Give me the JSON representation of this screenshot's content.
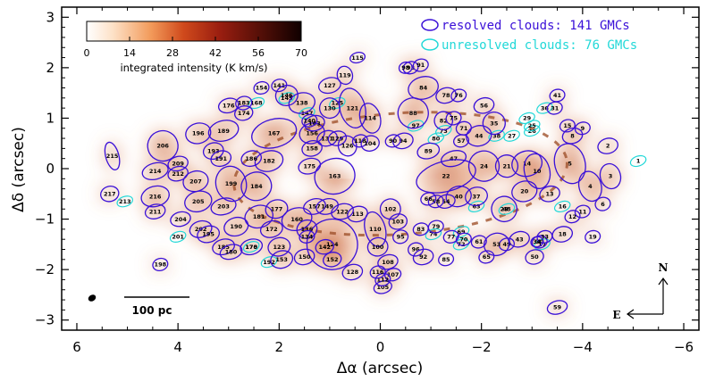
{
  "chart_data": {
    "type": "scatter",
    "title": "",
    "xlabel": "Δα (arcsec)",
    "ylabel": "Δδ (arcsec)",
    "xlim": [
      6.3,
      -6.3
    ],
    "ylim": [
      -3.2,
      3.2
    ],
    "x_ticks": [
      6,
      4,
      2,
      0,
      -2,
      -4,
      -6
    ],
    "y_ticks": [
      3,
      2,
      1,
      0,
      -1,
      -2,
      -3
    ],
    "x_tick_labels": [
      "6",
      "4",
      "2",
      "0",
      "−2",
      "−4",
      "−6"
    ],
    "y_tick_labels": [
      "3",
      "2",
      "1",
      "0",
      "−1",
      "−2",
      "−3"
    ],
    "legend": {
      "position": "top-right",
      "entries": [
        {
          "label": "resolved clouds: 141 GMCs",
          "color": "#3a10d8"
        },
        {
          "label": "unresolved clouds: 76 GMCs",
          "color": "#22d8d8"
        }
      ]
    },
    "colorbar": {
      "title": "integrated intensity (K km/s)",
      "range": [
        0,
        70
      ],
      "tick_labels": [
        "0",
        "14",
        "28",
        "42",
        "56",
        "70"
      ]
    },
    "scale_bar_label": "100 pc",
    "compass": {
      "north": "N",
      "east": "E"
    },
    "resolved_clouds": [
      {
        "id": "206",
        "x": 4.3,
        "y": 0.45,
        "a": 0.3,
        "b": 0.3
      },
      {
        "id": "214",
        "x": 4.45,
        "y": -0.05,
        "a": 0.26,
        "b": 0.16
      },
      {
        "id": "209",
        "x": 4.0,
        "y": 0.1,
        "a": 0.2,
        "b": 0.14
      },
      {
        "id": "212",
        "x": 4.0,
        "y": -0.1,
        "a": 0.2,
        "b": 0.14
      },
      {
        "id": "216",
        "x": 4.45,
        "y": -0.55,
        "a": 0.28,
        "b": 0.2
      },
      {
        "id": "211",
        "x": 4.45,
        "y": -0.85,
        "a": 0.2,
        "b": 0.14
      },
      {
        "id": "207",
        "x": 3.65,
        "y": -0.25,
        "a": 0.25,
        "b": 0.2
      },
      {
        "id": "205",
        "x": 3.6,
        "y": -0.65,
        "a": 0.27,
        "b": 0.2
      },
      {
        "id": "204",
        "x": 3.95,
        "y": -1.0,
        "a": 0.2,
        "b": 0.14
      },
      {
        "id": "202",
        "x": 3.55,
        "y": -1.2,
        "a": 0.22,
        "b": 0.16
      },
      {
        "id": "196",
        "x": 3.6,
        "y": 0.7,
        "a": 0.25,
        "b": 0.2
      },
      {
        "id": "189",
        "x": 3.1,
        "y": 0.75,
        "a": 0.3,
        "b": 0.2
      },
      {
        "id": "193",
        "x": 3.3,
        "y": 0.35,
        "a": 0.2,
        "b": 0.16
      },
      {
        "id": "191",
        "x": 3.15,
        "y": 0.2,
        "a": 0.2,
        "b": 0.15
      },
      {
        "id": "199",
        "x": 2.95,
        "y": -0.3,
        "a": 0.3,
        "b": 0.35
      },
      {
        "id": "203",
        "x": 3.1,
        "y": -0.75,
        "a": 0.25,
        "b": 0.16
      },
      {
        "id": "195",
        "x": 3.4,
        "y": -1.3,
        "a": 0.22,
        "b": 0.16
      },
      {
        "id": "190",
        "x": 2.85,
        "y": -1.15,
        "a": 0.24,
        "b": 0.18
      },
      {
        "id": "185",
        "x": 3.1,
        "y": -1.55,
        "a": 0.22,
        "b": 0.15
      },
      {
        "id": "180",
        "x": 2.95,
        "y": -1.65,
        "a": 0.22,
        "b": 0.14
      },
      {
        "id": "181",
        "x": 2.4,
        "y": -0.95,
        "a": 0.28,
        "b": 0.22
      },
      {
        "id": "184",
        "x": 2.45,
        "y": -0.35,
        "a": 0.3,
        "b": 0.28
      },
      {
        "id": "182",
        "x": 2.2,
        "y": 0.15,
        "a": 0.28,
        "b": 0.2
      },
      {
        "id": "186",
        "x": 2.55,
        "y": 0.2,
        "a": 0.2,
        "b": 0.15
      },
      {
        "id": "177",
        "x": 2.05,
        "y": -0.8,
        "a": 0.22,
        "b": 0.18
      },
      {
        "id": "172",
        "x": 2.15,
        "y": -1.2,
        "a": 0.22,
        "b": 0.16
      },
      {
        "id": "170",
        "x": 2.55,
        "y": -1.55,
        "a": 0.22,
        "b": 0.15
      },
      {
        "id": "160",
        "x": 1.65,
        "y": -1.0,
        "a": 0.3,
        "b": 0.22
      },
      {
        "id": "153",
        "x": 1.95,
        "y": -1.8,
        "a": 0.22,
        "b": 0.17
      },
      {
        "id": "174",
        "x": 2.7,
        "y": 1.1,
        "a": 0.18,
        "b": 0.14
      },
      {
        "id": "176",
        "x": 3.0,
        "y": 1.25,
        "a": 0.2,
        "b": 0.14
      },
      {
        "id": "183",
        "x": 2.7,
        "y": 1.3,
        "a": 0.16,
        "b": 0.13
      },
      {
        "id": "167",
        "x": 2.1,
        "y": 0.7,
        "a": 0.45,
        "b": 0.28
      },
      {
        "id": "154",
        "x": 2.35,
        "y": 1.6,
        "a": 0.15,
        "b": 0.12
      },
      {
        "id": "141",
        "x": 2.0,
        "y": 1.65,
        "a": 0.15,
        "b": 0.12
      },
      {
        "id": "146",
        "x": 1.85,
        "y": 1.45,
        "a": 0.22,
        "b": 0.2
      },
      {
        "id": "156",
        "x": 1.35,
        "y": 0.7,
        "a": 0.25,
        "b": 0.2
      },
      {
        "id": "163",
        "x": 0.9,
        "y": -0.15,
        "a": 0.4,
        "b": 0.35
      },
      {
        "id": "158",
        "x": 1.35,
        "y": 0.4,
        "a": 0.2,
        "b": 0.15
      },
      {
        "id": "175",
        "x": 1.4,
        "y": 0.05,
        "a": 0.22,
        "b": 0.15
      },
      {
        "id": "157",
        "x": 1.3,
        "y": -0.75,
        "a": 0.22,
        "b": 0.15
      },
      {
        "id": "149",
        "x": 1.05,
        "y": -0.75,
        "a": 0.22,
        "b": 0.15
      },
      {
        "id": "143",
        "x": 1.3,
        "y": 0.9,
        "a": 0.2,
        "b": 0.15
      },
      {
        "id": "138",
        "x": 1.55,
        "y": 1.3,
        "a": 0.26,
        "b": 0.2
      },
      {
        "id": "140",
        "x": 1.4,
        "y": 0.95,
        "a": 0.15,
        "b": 0.12
      },
      {
        "id": "131",
        "x": 1.05,
        "y": 0.6,
        "a": 0.2,
        "b": 0.15
      },
      {
        "id": "129",
        "x": 0.85,
        "y": 0.6,
        "a": 0.18,
        "b": 0.14
      },
      {
        "id": "130",
        "x": 1.0,
        "y": 1.2,
        "a": 0.2,
        "b": 0.2
      },
      {
        "id": "127",
        "x": 1.0,
        "y": 1.65,
        "a": 0.22,
        "b": 0.15
      },
      {
        "id": "119",
        "x": 0.7,
        "y": 1.85,
        "a": 0.15,
        "b": 0.18
      },
      {
        "id": "121",
        "x": 0.55,
        "y": 1.2,
        "a": 0.25,
        "b": 0.4
      },
      {
        "id": "126",
        "x": 0.65,
        "y": 0.45,
        "a": 0.18,
        "b": 0.2
      },
      {
        "id": "115",
        "x": 0.45,
        "y": 2.2,
        "a": 0.15,
        "b": 0.1
      },
      {
        "id": "114",
        "x": 0.2,
        "y": 1.0,
        "a": 0.2,
        "b": 0.3
      },
      {
        "id": "118",
        "x": 0.4,
        "y": 0.55,
        "a": 0.15,
        "b": 0.12
      },
      {
        "id": "113",
        "x": 0.45,
        "y": -0.9,
        "a": 0.2,
        "b": 0.15
      },
      {
        "id": "122",
        "x": 0.75,
        "y": -0.85,
        "a": 0.22,
        "b": 0.15
      },
      {
        "id": "124",
        "x": 0.95,
        "y": -1.5,
        "a": 0.5,
        "b": 0.5
      },
      {
        "id": "136",
        "x": 1.45,
        "y": -1.2,
        "a": 0.2,
        "b": 0.18
      },
      {
        "id": "134",
        "x": 1.45,
        "y": -1.35,
        "a": 0.15,
        "b": 0.12
      },
      {
        "id": "142",
        "x": 1.1,
        "y": -1.55,
        "a": 0.18,
        "b": 0.14
      },
      {
        "id": "152",
        "x": 0.95,
        "y": -1.8,
        "a": 0.18,
        "b": 0.14
      },
      {
        "id": "123",
        "x": 2.0,
        "y": -1.55,
        "a": 0.22,
        "b": 0.18
      },
      {
        "id": "150",
        "x": 1.5,
        "y": -1.75,
        "a": 0.2,
        "b": 0.15
      },
      {
        "id": "110",
        "x": 0.1,
        "y": -1.2,
        "a": 0.2,
        "b": 0.35
      },
      {
        "id": "104",
        "x": 0.2,
        "y": 0.5,
        "a": 0.18,
        "b": 0.15
      },
      {
        "id": "105",
        "x": -0.05,
        "y": -2.35,
        "a": 0.18,
        "b": 0.12
      },
      {
        "id": "108",
        "x": -0.15,
        "y": -1.85,
        "a": 0.2,
        "b": 0.14
      },
      {
        "id": "107",
        "x": -0.25,
        "y": -2.1,
        "a": 0.16,
        "b": 0.12
      },
      {
        "id": "112",
        "x": -0.05,
        "y": -2.2,
        "a": 0.15,
        "b": 0.12
      },
      {
        "id": "116",
        "x": 0.05,
        "y": -2.05,
        "a": 0.15,
        "b": 0.12
      },
      {
        "id": "128",
        "x": 0.55,
        "y": -2.05,
        "a": 0.2,
        "b": 0.15
      },
      {
        "id": "102",
        "x": -0.2,
        "y": -0.8,
        "a": 0.2,
        "b": 0.2
      },
      {
        "id": "103",
        "x": -0.35,
        "y": -1.05,
        "a": 0.18,
        "b": 0.15
      },
      {
        "id": "100",
        "x": 0.05,
        "y": -1.55,
        "a": 0.2,
        "b": 0.18
      },
      {
        "id": "95",
        "x": -0.4,
        "y": -1.35,
        "a": 0.15,
        "b": 0.13
      },
      {
        "id": "96",
        "x": -0.7,
        "y": -1.6,
        "a": 0.15,
        "b": 0.13
      },
      {
        "id": "92",
        "x": -0.85,
        "y": -1.75,
        "a": 0.2,
        "b": 0.15
      },
      {
        "id": "85",
        "x": -1.3,
        "y": -1.8,
        "a": 0.15,
        "b": 0.12
      },
      {
        "id": "93",
        "x": -0.6,
        "y": 2.0,
        "a": 0.15,
        "b": 0.12
      },
      {
        "id": "91",
        "x": -0.8,
        "y": 2.05,
        "a": 0.15,
        "b": 0.12
      },
      {
        "id": "98",
        "x": -0.5,
        "y": 2.0,
        "a": 0.13,
        "b": 0.11
      },
      {
        "id": "84",
        "x": -0.85,
        "y": 1.6,
        "a": 0.3,
        "b": 0.22
      },
      {
        "id": "88",
        "x": -0.65,
        "y": 1.1,
        "a": 0.3,
        "b": 0.3
      },
      {
        "id": "94",
        "x": -0.45,
        "y": 0.55,
        "a": 0.2,
        "b": 0.15
      },
      {
        "id": "90",
        "x": -0.25,
        "y": 0.55,
        "a": 0.15,
        "b": 0.12
      },
      {
        "id": "89",
        "x": -0.95,
        "y": 0.35,
        "a": 0.22,
        "b": 0.15
      },
      {
        "id": "78",
        "x": -1.3,
        "y": 1.45,
        "a": 0.2,
        "b": 0.15
      },
      {
        "id": "76",
        "x": -1.55,
        "y": 1.45,
        "a": 0.15,
        "b": 0.12
      },
      {
        "id": "82",
        "x": -1.25,
        "y": 0.95,
        "a": 0.18,
        "b": 0.18
      },
      {
        "id": "75",
        "x": -1.45,
        "y": 1.0,
        "a": 0.15,
        "b": 0.13
      },
      {
        "id": "71",
        "x": -1.65,
        "y": 0.8,
        "a": 0.15,
        "b": 0.13
      },
      {
        "id": "57",
        "x": -1.6,
        "y": 0.55,
        "a": 0.15,
        "b": 0.12
      },
      {
        "id": "47",
        "x": -1.45,
        "y": 0.2,
        "a": 0.25,
        "b": 0.15
      },
      {
        "id": "22",
        "x": -1.3,
        "y": -0.15,
        "a": 0.6,
        "b": 0.3
      },
      {
        "id": "24",
        "x": -2.05,
        "y": 0.05,
        "a": 0.3,
        "b": 0.3
      },
      {
        "id": "21",
        "x": -2.5,
        "y": 0.05,
        "a": 0.22,
        "b": 0.22
      },
      {
        "id": "23",
        "x": -2.45,
        "y": -0.8,
        "a": 0.25,
        "b": 0.25
      },
      {
        "id": "40",
        "x": -1.55,
        "y": -0.55,
        "a": 0.25,
        "b": 0.2
      },
      {
        "id": "37",
        "x": -1.9,
        "y": -0.55,
        "a": 0.22,
        "b": 0.18
      },
      {
        "id": "54",
        "x": -1.3,
        "y": -0.65,
        "a": 0.18,
        "b": 0.13
      },
      {
        "id": "58",
        "x": -1.1,
        "y": -0.65,
        "a": 0.15,
        "b": 0.12
      },
      {
        "id": "66",
        "x": -0.95,
        "y": -0.6,
        "a": 0.15,
        "b": 0.12
      },
      {
        "id": "44",
        "x": -1.95,
        "y": 0.65,
        "a": 0.25,
        "b": 0.2
      },
      {
        "id": "35",
        "x": -2.25,
        "y": 0.9,
        "a": 0.22,
        "b": 0.22
      },
      {
        "id": "56",
        "x": -2.05,
        "y": 1.25,
        "a": 0.2,
        "b": 0.15
      },
      {
        "id": "41",
        "x": -3.5,
        "y": 1.45,
        "a": 0.15,
        "b": 0.12
      },
      {
        "id": "31",
        "x": -3.45,
        "y": 1.2,
        "a": 0.15,
        "b": 0.12
      },
      {
        "id": "14",
        "x": -2.9,
        "y": 0.1,
        "a": 0.3,
        "b": 0.25
      },
      {
        "id": "10",
        "x": -3.1,
        "y": -0.05,
        "a": 0.25,
        "b": 0.35
      },
      {
        "id": "20",
        "x": -2.85,
        "y": -0.45,
        "a": 0.25,
        "b": 0.2
      },
      {
        "id": "13",
        "x": -3.35,
        "y": -0.5,
        "a": 0.2,
        "b": 0.15
      },
      {
        "id": "5",
        "x": -3.75,
        "y": 0.1,
        "a": 0.3,
        "b": 0.4
      },
      {
        "id": "4",
        "x": -4.15,
        "y": -0.35,
        "a": 0.22,
        "b": 0.3
      },
      {
        "id": "3",
        "x": -4.55,
        "y": -0.15,
        "a": 0.2,
        "b": 0.25
      },
      {
        "id": "2",
        "x": -4.5,
        "y": 0.45,
        "a": 0.2,
        "b": 0.15
      },
      {
        "id": "8",
        "x": -3.8,
        "y": 0.65,
        "a": 0.2,
        "b": 0.15
      },
      {
        "id": "15",
        "x": -3.7,
        "y": 0.85,
        "a": 0.15,
        "b": 0.12
      },
      {
        "id": "9",
        "x": -4.0,
        "y": 0.8,
        "a": 0.15,
        "b": 0.12
      },
      {
        "id": "6",
        "x": -4.4,
        "y": -0.7,
        "a": 0.15,
        "b": 0.13
      },
      {
        "id": "11",
        "x": -4.0,
        "y": -0.85,
        "a": 0.15,
        "b": 0.12
      },
      {
        "id": "12",
        "x": -3.8,
        "y": -0.95,
        "a": 0.15,
        "b": 0.12
      },
      {
        "id": "18",
        "x": -3.6,
        "y": -1.3,
        "a": 0.2,
        "b": 0.15
      },
      {
        "id": "19",
        "x": -4.2,
        "y": -1.35,
        "a": 0.15,
        "b": 0.12
      },
      {
        "id": "30",
        "x": -3.15,
        "y": -1.45,
        "a": 0.15,
        "b": 0.12
      },
      {
        "id": "33",
        "x": -3.25,
        "y": -1.35,
        "a": 0.15,
        "b": 0.12
      },
      {
        "id": "34",
        "x": -3.1,
        "y": -1.45,
        "a": 0.12,
        "b": 0.1
      },
      {
        "id": "43",
        "x": -2.75,
        "y": -1.4,
        "a": 0.2,
        "b": 0.15
      },
      {
        "id": "49",
        "x": -2.5,
        "y": -1.5,
        "a": 0.15,
        "b": 0.12
      },
      {
        "id": "50",
        "x": -3.05,
        "y": -1.75,
        "a": 0.18,
        "b": 0.14
      },
      {
        "id": "53",
        "x": -2.3,
        "y": -1.5,
        "a": 0.25,
        "b": 0.22
      },
      {
        "id": "61",
        "x": -1.95,
        "y": -1.45,
        "a": 0.15,
        "b": 0.12
      },
      {
        "id": "65",
        "x": -2.1,
        "y": -1.75,
        "a": 0.15,
        "b": 0.12
      },
      {
        "id": "70",
        "x": -1.65,
        "y": -1.4,
        "a": 0.15,
        "b": 0.12
      },
      {
        "id": "77",
        "x": -1.4,
        "y": -1.35,
        "a": 0.15,
        "b": 0.12
      },
      {
        "id": "79",
        "x": -1.1,
        "y": -1.15,
        "a": 0.15,
        "b": 0.12
      },
      {
        "id": "83",
        "x": -0.8,
        "y": -1.2,
        "a": 0.15,
        "b": 0.12
      },
      {
        "id": "59",
        "x": -3.5,
        "y": -2.75,
        "a": 0.2,
        "b": 0.13
      },
      {
        "id": "215",
        "x": 5.3,
        "y": 0.25,
        "a": 0.13,
        "b": 0.28
      },
      {
        "id": "217",
        "x": 5.35,
        "y": -0.5,
        "a": 0.18,
        "b": 0.15
      },
      {
        "id": "198",
        "x": 4.35,
        "y": -1.9,
        "a": 0.15,
        "b": 0.12
      }
    ],
    "unresolved_clouds": [
      {
        "id": "213",
        "x": 5.05,
        "y": -0.65
      },
      {
        "id": "201",
        "x": 4.0,
        "y": -1.35
      },
      {
        "id": "192",
        "x": 2.2,
        "y": -1.85
      },
      {
        "id": "178",
        "x": 2.55,
        "y": -1.55
      },
      {
        "id": "168",
        "x": 2.45,
        "y": 1.3
      },
      {
        "id": "145",
        "x": 1.85,
        "y": 1.4
      },
      {
        "id": "147",
        "x": 1.45,
        "y": 1.1
      },
      {
        "id": "125",
        "x": 0.85,
        "y": 1.3
      },
      {
        "id": "97",
        "x": -0.7,
        "y": 0.85
      },
      {
        "id": "80",
        "x": -1.1,
        "y": 0.6
      },
      {
        "id": "73",
        "x": -1.25,
        "y": 0.75
      },
      {
        "id": "74",
        "x": -1.05,
        "y": -1.3
      },
      {
        "id": "72",
        "x": -1.6,
        "y": -1.5
      },
      {
        "id": "69",
        "x": -1.6,
        "y": -1.25
      },
      {
        "id": "63",
        "x": -1.9,
        "y": -0.75
      },
      {
        "id": "48",
        "x": -2.5,
        "y": -0.8
      },
      {
        "id": "38",
        "x": -2.3,
        "y": 0.65
      },
      {
        "id": "36",
        "x": -3.25,
        "y": 1.2
      },
      {
        "id": "29",
        "x": -2.9,
        "y": 1.0
      },
      {
        "id": "27",
        "x": -2.6,
        "y": 0.65
      },
      {
        "id": "26",
        "x": -3.0,
        "y": 0.75
      },
      {
        "id": "25",
        "x": -3.0,
        "y": 0.85
      },
      {
        "id": "17",
        "x": -3.2,
        "y": -1.5
      },
      {
        "id": "16",
        "x": -3.6,
        "y": -0.75
      },
      {
        "id": "1",
        "x": -5.1,
        "y": 0.15
      }
    ]
  }
}
